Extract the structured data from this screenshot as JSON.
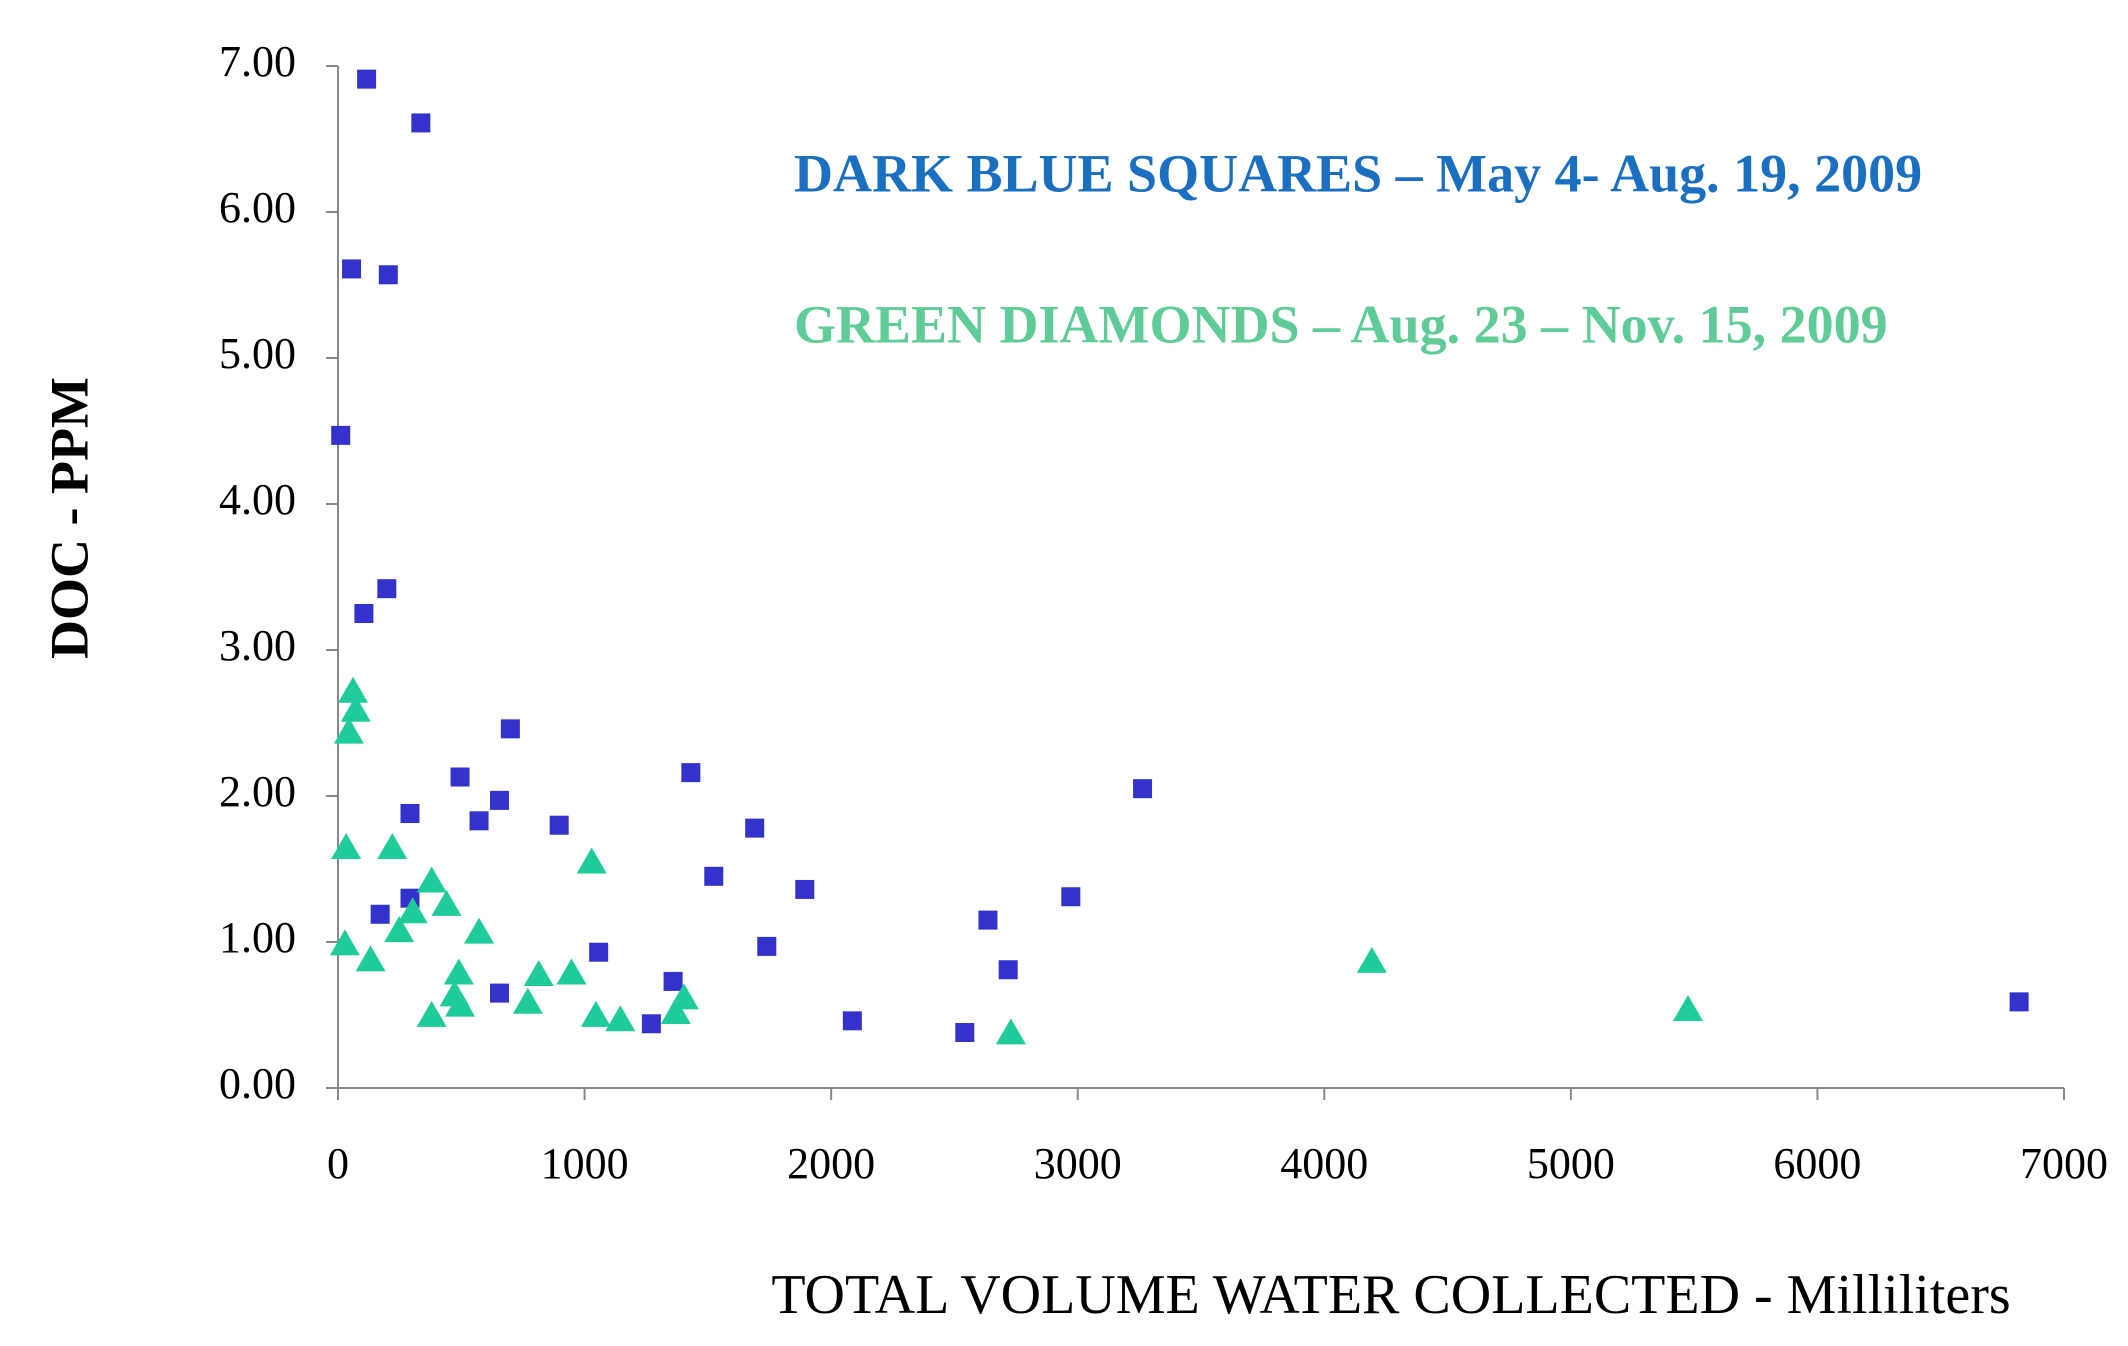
{
  "chart_data": {
    "type": "scatter",
    "xlabel": "TOTAL VOLUME WATER COLLECTED - Milliliters",
    "ylabel": "DOC - PPM",
    "annotations": [
      {
        "text": "DARK BLUE SQUARES – May 4- Aug. 19, 2009",
        "color": "#1a6fc0"
      },
      {
        "text": "GREEN DIAMONDS – Aug. 23 – Nov. 15, 2009",
        "color": "#5fcb96"
      }
    ],
    "xlim": [
      0,
      7000
    ],
    "xticks": [
      0,
      1000,
      2000,
      3000,
      4000,
      5000,
      6000,
      7000
    ],
    "ylim": [
      0,
      7
    ],
    "yticks": [
      {
        "value": 0,
        "label": "0.00"
      },
      {
        "value": 1,
        "label": "1.00"
      },
      {
        "value": 2,
        "label": "2.00"
      },
      {
        "value": 3,
        "label": "3.00"
      },
      {
        "value": 4,
        "label": "4.00"
      },
      {
        "value": 5,
        "label": "5.00"
      },
      {
        "value": 6,
        "label": "6.00"
      },
      {
        "value": 7,
        "label": "7.00"
      }
    ],
    "series": [
      {
        "color": "#3333cc",
        "marker": "square",
        "x": [
          116,
          336,
          55,
          204,
          11,
          198,
          105,
          699,
          495,
          292,
          655,
          572,
          897,
          1431,
          1690,
          1524,
          1893,
          1739,
          292,
          171,
          1057,
          655,
          1359,
          1271,
          2086,
          2542,
          2636,
          2718,
          2972,
          3263,
          6818
        ],
        "values": [
          6.91,
          6.61,
          5.61,
          5.57,
          4.47,
          3.42,
          3.25,
          2.46,
          2.13,
          1.88,
          1.97,
          1.83,
          1.8,
          2.16,
          1.78,
          1.45,
          1.36,
          0.97,
          1.3,
          1.19,
          0.93,
          0.65,
          0.73,
          0.44,
          0.46,
          0.38,
          1.15,
          0.81,
          1.31,
          2.05,
          0.59
        ]
      },
      {
        "color": "#1fcc99",
        "marker": "triangle",
        "x": [
          61,
          72,
          44,
          33,
          220,
          380,
          440,
          303,
          248,
          572,
          28,
          132,
          490,
          473,
          495,
          380,
          770,
          814,
          947,
          1029,
          1046,
          1145,
          1370,
          1403,
          2729,
          4193,
          5475
        ],
        "values": [
          2.71,
          2.58,
          2.43,
          1.64,
          1.64,
          1.41,
          1.25,
          1.2,
          1.07,
          1.06,
          0.98,
          0.87,
          0.78,
          0.63,
          0.56,
          0.49,
          0.58,
          0.77,
          0.78,
          1.54,
          0.49,
          0.46,
          0.51,
          0.61,
          0.37,
          0.86,
          0.53
        ]
      }
    ]
  }
}
